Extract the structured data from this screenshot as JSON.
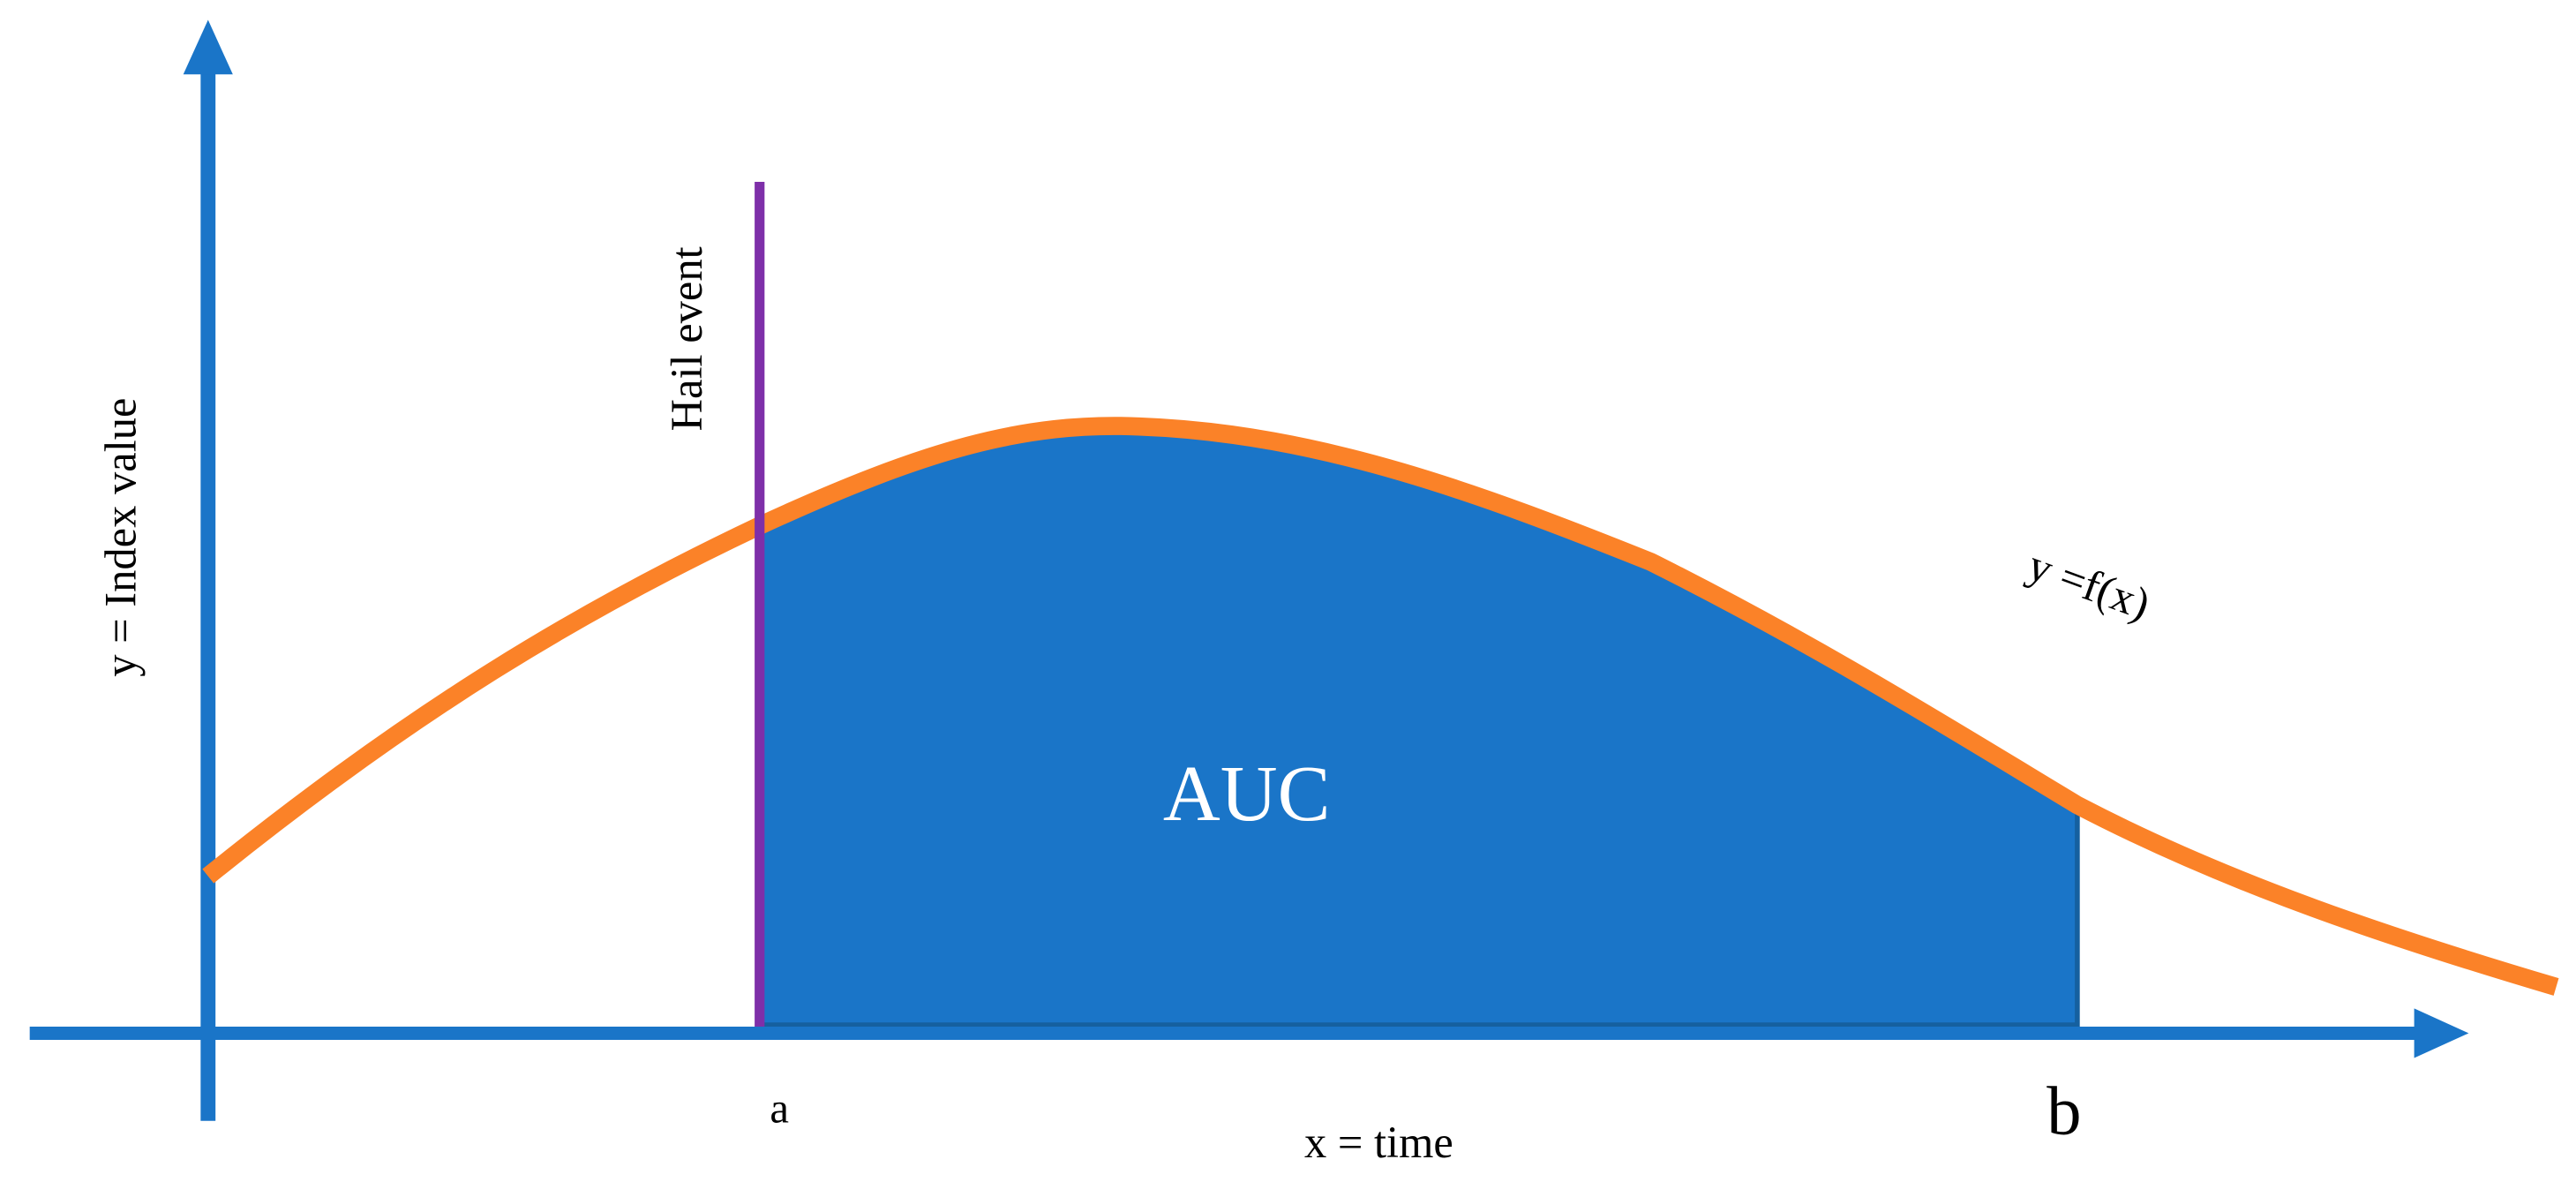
{
  "axes": {
    "y_label": "y = Index value",
    "x_label": "x = time"
  },
  "event": {
    "label": "Hail event"
  },
  "area": {
    "label": "AUC"
  },
  "curve": {
    "label": "y =f(x)"
  },
  "bounds": {
    "a": "a",
    "b": "b"
  }
}
